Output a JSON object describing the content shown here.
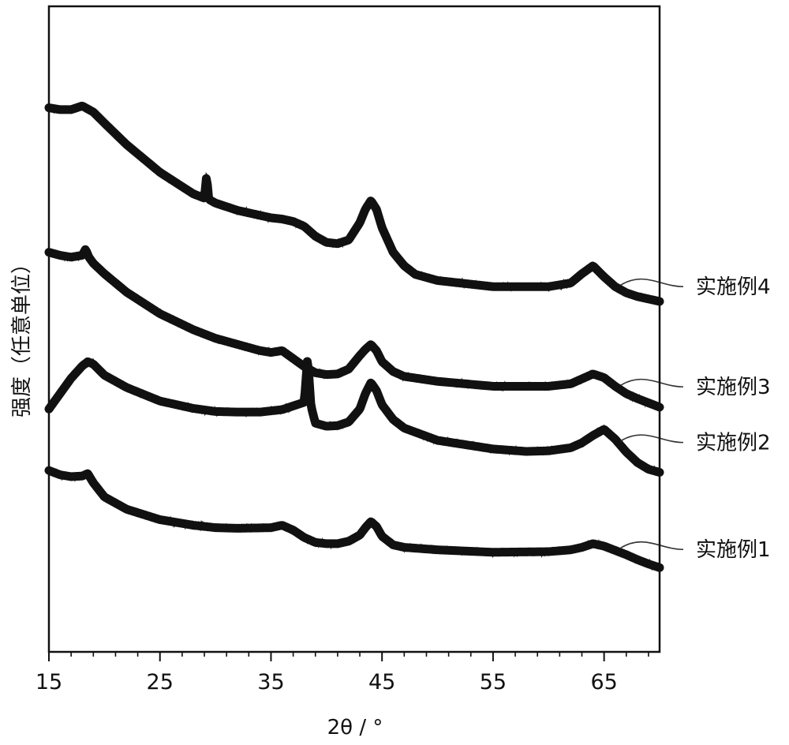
{
  "chart_data": {
    "type": "line",
    "xlabel": "2θ / °",
    "ylabel": "强度（任意单位）",
    "xlim": [
      15,
      70
    ],
    "x_ticks": [
      15,
      25,
      35,
      45,
      55,
      65
    ],
    "y_ticks": [],
    "grid": false,
    "legend": "inline labels at right",
    "series": [
      {
        "name": "实施例1",
        "offset": 0,
        "x": [
          15,
          16,
          17,
          18,
          18.5,
          19,
          20,
          22,
          25,
          28,
          30,
          32,
          35,
          36,
          37,
          38,
          39,
          40,
          41,
          42,
          43,
          43.5,
          44,
          44.5,
          45,
          46,
          47,
          50,
          55,
          60,
          62,
          63,
          64,
          65,
          66,
          67,
          68,
          69,
          70
        ],
        "y": [
          17.5,
          16.8,
          16.5,
          16.6,
          17.0,
          15.5,
          13.2,
          11.2,
          9.5,
          8.6,
          8.2,
          8.1,
          8.2,
          8.6,
          7.8,
          6.6,
          5.8,
          5.6,
          5.6,
          6.0,
          7.0,
          8.2,
          9.2,
          8.4,
          6.8,
          5.4,
          5.0,
          4.6,
          4.2,
          4.3,
          4.6,
          5.0,
          5.6,
          5.2,
          4.5,
          3.8,
          3.0,
          2.3,
          1.7
        ]
      },
      {
        "name": "实施例2",
        "offset": 25,
        "x": [
          15,
          16,
          17,
          18,
          18.5,
          19,
          20,
          22,
          25,
          28,
          30,
          32,
          34,
          36,
          37,
          38,
          38.3,
          38.6,
          39,
          40,
          41,
          42,
          43,
          43.5,
          44,
          44.5,
          45,
          46,
          47,
          50,
          55,
          58,
          60,
          62,
          63,
          64,
          65,
          66,
          67,
          68,
          69,
          70
        ],
        "y": [
          2.5,
          5.0,
          7.5,
          9.5,
          10.2,
          9.8,
          8.0,
          6.0,
          3.8,
          2.6,
          2.1,
          2.0,
          2.0,
          2.4,
          3.0,
          3.6,
          11.0,
          3.0,
          0.2,
          -0.3,
          -0.2,
          0.4,
          2.5,
          5.0,
          6.8,
          5.5,
          3.2,
          0.8,
          -0.6,
          -2.6,
          -4.0,
          -4.4,
          -4.3,
          -3.8,
          -3.0,
          -1.8,
          -0.8,
          -2.4,
          -4.5,
          -6.2,
          -7.3,
          -7.8
        ]
      },
      {
        "name": "实施例3",
        "offset": 50,
        "x": [
          15,
          16,
          17,
          18,
          18.3,
          18.6,
          19,
          20,
          22,
          25,
          28,
          30,
          32,
          34,
          35,
          36,
          37,
          38,
          39,
          40,
          41,
          42,
          43,
          43.5,
          44,
          44.5,
          45,
          46,
          47,
          50,
          55,
          60,
          62,
          63,
          64,
          65,
          66,
          67,
          68,
          69,
          70
        ],
        "y": [
          3.0,
          2.5,
          2.2,
          2.5,
          3.5,
          2.2,
          1.2,
          -0.5,
          -3.5,
          -7.0,
          -9.6,
          -11.0,
          -12.0,
          -13.0,
          -13.3,
          -13.0,
          -14.3,
          -15.6,
          -16.6,
          -16.9,
          -16.8,
          -16.0,
          -13.8,
          -12.8,
          -12.0,
          -13.0,
          -14.8,
          -16.4,
          -17.2,
          -18.0,
          -18.8,
          -18.8,
          -18.4,
          -17.6,
          -16.8,
          -17.4,
          -18.8,
          -20.0,
          -20.8,
          -21.5,
          -22.2
        ]
      },
      {
        "name": "实施例4",
        "offset": 75,
        "x": [
          15,
          16,
          17,
          18,
          19,
          20,
          22,
          25,
          28,
          29,
          29.2,
          29.4,
          30,
          32,
          34,
          35,
          36,
          37,
          38,
          39,
          40,
          41,
          42,
          43,
          43.5,
          44,
          44.5,
          45,
          46,
          47,
          48,
          50,
          55,
          60,
          62,
          63,
          64,
          65,
          66,
          67,
          68,
          69,
          70
        ],
        "y": [
          1.5,
          1.2,
          1.2,
          1.8,
          0.8,
          -1.0,
          -4.5,
          -9.0,
          -12.5,
          -13.2,
          -9.5,
          -13.4,
          -14.0,
          -15.2,
          -16.0,
          -16.4,
          -16.6,
          -17.0,
          -17.8,
          -19.4,
          -20.4,
          -20.6,
          -20.0,
          -17.2,
          -15.0,
          -13.6,
          -15.0,
          -18.0,
          -22.0,
          -24.2,
          -25.6,
          -26.6,
          -27.6,
          -27.6,
          -27.0,
          -25.5,
          -24.2,
          -26.0,
          -27.6,
          -28.6,
          -29.2,
          -29.6,
          -30.0
        ]
      }
    ]
  }
}
